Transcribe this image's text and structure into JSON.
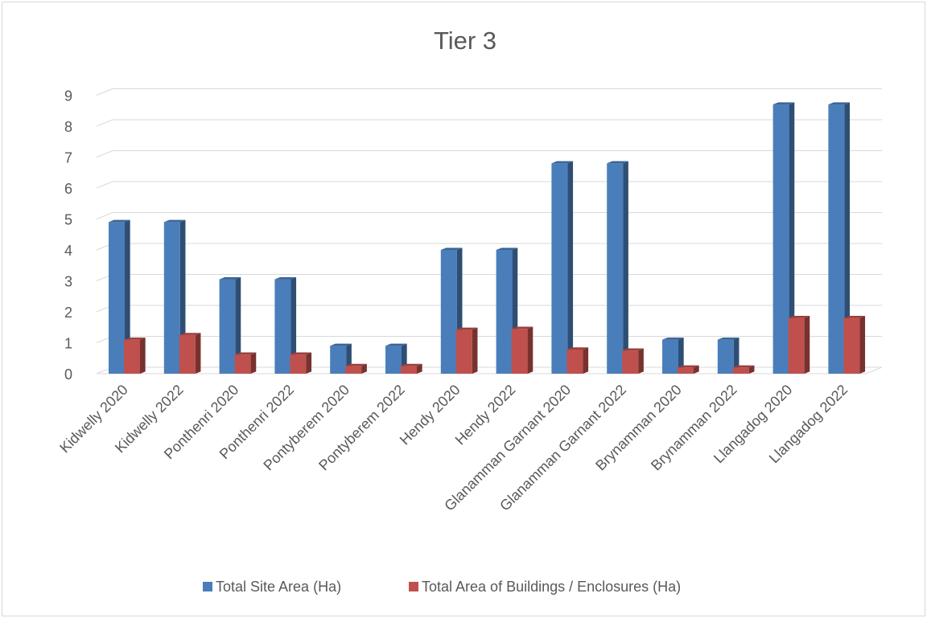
{
  "chart_data": {
    "type": "bar",
    "title": "Tier 3",
    "categories": [
      "Kidwelly 2020",
      "Kidwelly 2022",
      "Ponthenri 2020",
      "Ponthenri 2022",
      "Pontyberem 2020",
      "Pontyberem 2022",
      "Hendy 2020",
      "Hendy 2022",
      "Glanamman Garnant 2020",
      "Glanamman Garnant 2022",
      "Brynamman 2020",
      "Brynamman 2022",
      "Llangadog 2020",
      "Llangadog 2022"
    ],
    "series": [
      {
        "name": "Total Site Area (Ha)",
        "color": "#4a7ebb",
        "values": [
          4.9,
          4.9,
          3.05,
          3.05,
          0.9,
          0.9,
          4.0,
          4.0,
          6.8,
          6.8,
          1.1,
          1.1,
          8.7,
          8.7
        ]
      },
      {
        "name": "Total Area of Buildings / Enclosures (Ha)",
        "color": "#c0504d",
        "values": [
          1.1,
          1.25,
          0.62,
          0.62,
          0.25,
          0.25,
          1.42,
          1.45,
          0.78,
          0.75,
          0.2,
          0.2,
          1.8,
          1.8
        ]
      }
    ],
    "ylim": [
      0,
      9
    ],
    "yticks": [
      "0",
      "1",
      "2",
      "3",
      "4",
      "5",
      "6",
      "7",
      "8",
      "9"
    ],
    "xlabel": "",
    "ylabel": "",
    "grid": true,
    "legend": "bottom",
    "style": "3d-clustered-column"
  }
}
